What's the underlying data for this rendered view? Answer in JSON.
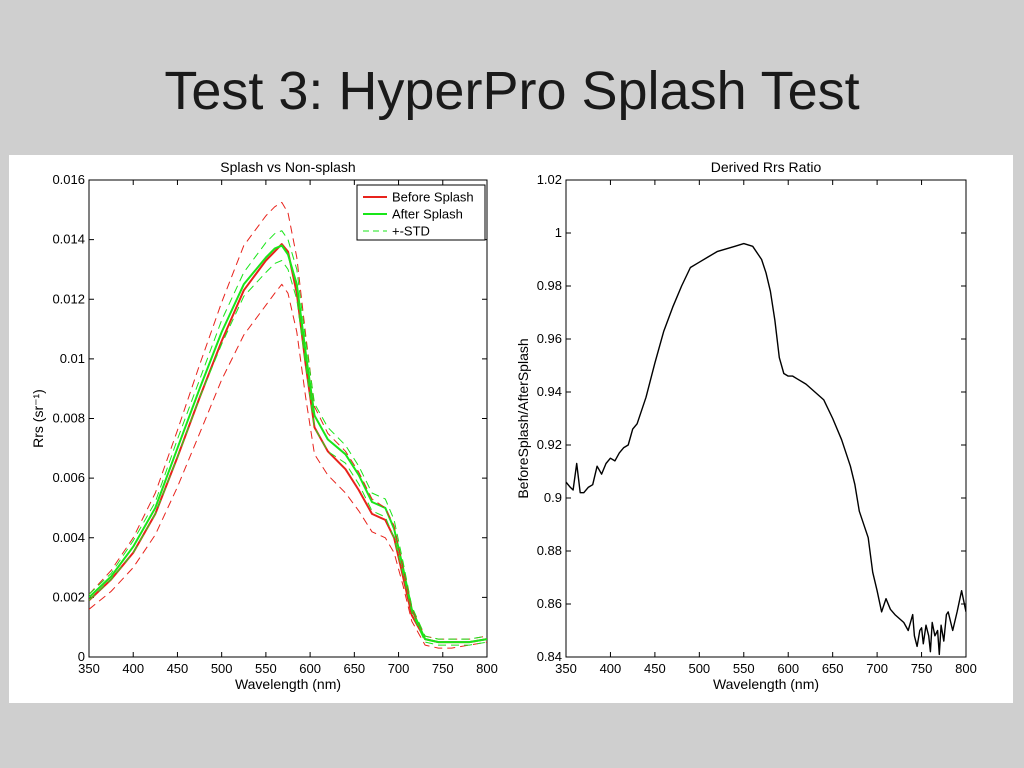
{
  "slide": {
    "title": "Test 3: HyperPro Splash Test"
  },
  "chart_data": [
    {
      "type": "line",
      "title": "Splash vs Non-splash",
      "xlabel": "Wavelength (nm)",
      "ylabel": "Rrs (sr⁻¹)",
      "xlim": [
        350,
        800
      ],
      "ylim": [
        0,
        0.016
      ],
      "xticks": [
        350,
        400,
        450,
        500,
        550,
        600,
        650,
        700,
        750,
        800
      ],
      "yticks": [
        0,
        0.002,
        0.004,
        0.006,
        0.008,
        0.01,
        0.012,
        0.014,
        0.016
      ],
      "ytick_labels": [
        "0",
        "0.002",
        "0.004",
        "0.006",
        "0.008",
        "0.01",
        "0.012",
        "0.014",
        "0.016"
      ],
      "legend": {
        "position": "top-right",
        "entries": [
          {
            "label": "Before Splash",
            "color": "#e8231c",
            "style": "solid"
          },
          {
            "label": "After Splash",
            "color": "#19e619",
            "style": "solid"
          },
          {
            "label": "+-STD",
            "color": "#19e619",
            "style": "dashed"
          }
        ]
      },
      "series": [
        {
          "name": "Before Splash",
          "color": "#e8231c",
          "style": "solid",
          "x": [
            350,
            375,
            400,
            425,
            450,
            475,
            500,
            525,
            550,
            560,
            568,
            575,
            585,
            595,
            605,
            620,
            640,
            655,
            670,
            685,
            695,
            705,
            715,
            730,
            745,
            760,
            780,
            800
          ],
          "y": [
            0.0019,
            0.0026,
            0.0035,
            0.0048,
            0.0067,
            0.0087,
            0.0106,
            0.0123,
            0.0133,
            0.0136,
            0.01385,
            0.0136,
            0.0122,
            0.0098,
            0.0077,
            0.0069,
            0.0063,
            0.0056,
            0.0048,
            0.0046,
            0.004,
            0.0027,
            0.0014,
            0.0006,
            0.0005,
            0.0005,
            0.0005,
            0.0006
          ]
        },
        {
          "name": "After Splash",
          "color": "#19e619",
          "style": "solid",
          "x": [
            350,
            375,
            400,
            425,
            450,
            475,
            500,
            525,
            550,
            560,
            568,
            575,
            585,
            595,
            605,
            620,
            640,
            655,
            670,
            685,
            695,
            705,
            715,
            730,
            745,
            760,
            780,
            800
          ],
          "y": [
            0.002,
            0.0027,
            0.0037,
            0.005,
            0.007,
            0.009,
            0.0109,
            0.0125,
            0.0134,
            0.0137,
            0.0138,
            0.0135,
            0.0125,
            0.0102,
            0.0081,
            0.0073,
            0.0068,
            0.0061,
            0.0052,
            0.005,
            0.0043,
            0.003,
            0.0016,
            0.0006,
            0.0005,
            0.0005,
            0.0005,
            0.0006
          ]
        },
        {
          "color": "#e8231c",
          "style": "dashed",
          "x": [
            350,
            375,
            400,
            425,
            450,
            475,
            500,
            525,
            550,
            560,
            568,
            575,
            585,
            595,
            605,
            620,
            640,
            655,
            670,
            685,
            695,
            705,
            715,
            730,
            745,
            760,
            780,
            800
          ],
          "y": [
            0.0021,
            0.0029,
            0.004,
            0.0055,
            0.0076,
            0.0098,
            0.0119,
            0.0138,
            0.0148,
            0.0151,
            0.01525,
            0.0149,
            0.0134,
            0.0108,
            0.0084,
            0.0075,
            0.0069,
            0.0062,
            0.0053,
            0.005,
            0.0044,
            0.003,
            0.0016,
            0.0007,
            0.0006,
            0.0006,
            0.0006,
            0.0007
          ]
        },
        {
          "color": "#e8231c",
          "style": "dashed",
          "x": [
            350,
            375,
            400,
            425,
            450,
            475,
            500,
            525,
            550,
            560,
            568,
            575,
            585,
            595,
            605,
            620,
            640,
            655,
            670,
            685,
            695,
            705,
            715,
            730,
            745,
            760,
            780,
            800
          ],
          "y": [
            0.0016,
            0.0022,
            0.003,
            0.0041,
            0.0057,
            0.0075,
            0.0093,
            0.0108,
            0.0118,
            0.0122,
            0.0125,
            0.0122,
            0.0109,
            0.0087,
            0.0068,
            0.0061,
            0.0055,
            0.0049,
            0.0042,
            0.004,
            0.0035,
            0.0024,
            0.0012,
            0.0004,
            0.0003,
            0.0003,
            0.0004,
            0.0005
          ]
        },
        {
          "color": "#19e619",
          "style": "dashed",
          "x": [
            350,
            375,
            400,
            425,
            450,
            475,
            500,
            525,
            550,
            560,
            568,
            575,
            585,
            595,
            605,
            620,
            640,
            655,
            670,
            685,
            695,
            705,
            715,
            730,
            745,
            760,
            780,
            800
          ],
          "y": [
            0.0021,
            0.0028,
            0.0039,
            0.0052,
            0.0073,
            0.0093,
            0.0113,
            0.0129,
            0.0139,
            0.0142,
            0.0143,
            0.014,
            0.013,
            0.0106,
            0.0085,
            0.0077,
            0.0071,
            0.0064,
            0.0055,
            0.0053,
            0.0046,
            0.0032,
            0.0017,
            0.0007,
            0.0006,
            0.0006,
            0.0006,
            0.0007
          ]
        },
        {
          "color": "#19e619",
          "style": "dashed",
          "x": [
            350,
            375,
            400,
            425,
            450,
            475,
            500,
            525,
            550,
            560,
            568,
            575,
            585,
            595,
            605,
            620,
            640,
            655,
            670,
            685,
            695,
            705,
            715,
            730,
            745,
            760,
            780,
            800
          ],
          "y": [
            0.0019,
            0.0026,
            0.0035,
            0.0048,
            0.0067,
            0.0087,
            0.0105,
            0.0121,
            0.0129,
            0.0132,
            0.0133,
            0.013,
            0.012,
            0.0098,
            0.0077,
            0.0069,
            0.0065,
            0.0058,
            0.0049,
            0.0047,
            0.004,
            0.0028,
            0.0015,
            0.0005,
            0.0004,
            0.0004,
            0.0004,
            0.0005
          ]
        }
      ]
    },
    {
      "type": "line",
      "title": "Derived Rrs Ratio",
      "xlabel": "Wavelength (nm)",
      "ylabel": "BeforeSplash/AfterSplash",
      "xlim": [
        350,
        800
      ],
      "ylim": [
        0.84,
        1.02
      ],
      "xticks": [
        350,
        400,
        450,
        500,
        550,
        600,
        650,
        700,
        750,
        800
      ],
      "yticks": [
        0.84,
        0.86,
        0.88,
        0.9,
        0.92,
        0.94,
        0.96,
        0.98,
        1,
        1.02
      ],
      "ytick_labels": [
        "0.84",
        "0.86",
        "0.88",
        "0.9",
        "0.92",
        "0.94",
        "0.96",
        "0.98",
        "1",
        "1.02"
      ],
      "series": [
        {
          "color": "#000000",
          "style": "solid",
          "x": [
            350,
            355,
            358,
            362,
            366,
            370,
            375,
            380,
            385,
            390,
            395,
            400,
            405,
            410,
            415,
            420,
            425,
            430,
            440,
            450,
            460,
            470,
            480,
            490,
            500,
            510,
            520,
            530,
            540,
            550,
            560,
            570,
            575,
            580,
            585,
            590,
            595,
            600,
            605,
            610,
            620,
            630,
            640,
            650,
            660,
            670,
            675,
            680,
            690,
            695,
            700,
            705,
            710,
            715,
            720,
            730,
            735,
            740,
            742,
            745,
            748,
            750,
            752,
            755,
            758,
            760,
            762,
            765,
            768,
            770,
            772,
            775,
            778,
            780,
            785,
            790,
            795,
            800
          ],
          "y": [
            0.906,
            0.904,
            0.903,
            0.913,
            0.902,
            0.902,
            0.904,
            0.905,
            0.912,
            0.909,
            0.913,
            0.915,
            0.914,
            0.917,
            0.919,
            0.92,
            0.926,
            0.928,
            0.938,
            0.951,
            0.963,
            0.972,
            0.98,
            0.987,
            0.989,
            0.991,
            0.993,
            0.994,
            0.995,
            0.996,
            0.995,
            0.99,
            0.985,
            0.978,
            0.967,
            0.953,
            0.947,
            0.946,
            0.946,
            0.945,
            0.943,
            0.94,
            0.937,
            0.93,
            0.922,
            0.912,
            0.905,
            0.895,
            0.885,
            0.872,
            0.865,
            0.857,
            0.862,
            0.858,
            0.856,
            0.853,
            0.85,
            0.856,
            0.848,
            0.844,
            0.85,
            0.851,
            0.845,
            0.852,
            0.848,
            0.842,
            0.853,
            0.848,
            0.85,
            0.841,
            0.852,
            0.846,
            0.856,
            0.857,
            0.85,
            0.857,
            0.865,
            0.857
          ]
        }
      ]
    }
  ]
}
